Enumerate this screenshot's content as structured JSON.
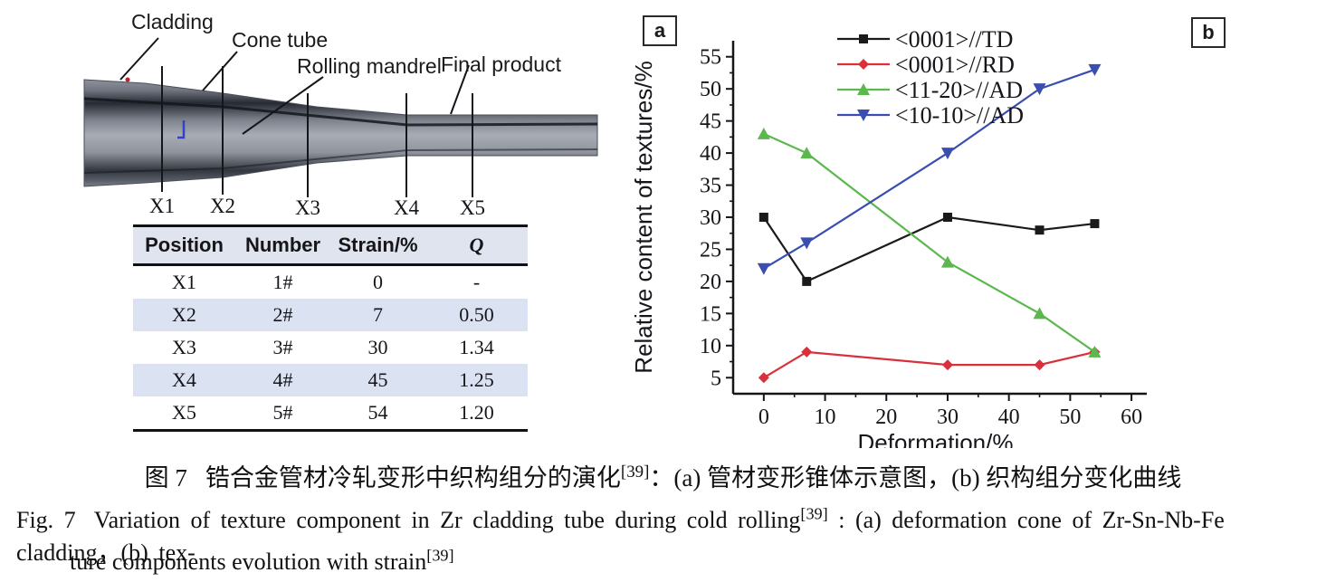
{
  "panel_a": {
    "badge": "a",
    "labels": {
      "cladding": "Cladding",
      "cone_tube": "Cone tube",
      "rolling_mandrel": "Rolling mandrel",
      "final_product": "Final product"
    },
    "positions": [
      "X1",
      "X2",
      "X3",
      "X4",
      "X5"
    ]
  },
  "table": {
    "headers": [
      "Position",
      "Number",
      "Strain/%",
      "Q"
    ],
    "rows": [
      {
        "position": "X1",
        "number": "1#",
        "strain": "0",
        "q": "-"
      },
      {
        "position": "X2",
        "number": "2#",
        "strain": "7",
        "q": "0.50"
      },
      {
        "position": "X3",
        "number": "3#",
        "strain": "30",
        "q": "1.34"
      },
      {
        "position": "X4",
        "number": "4#",
        "strain": "45",
        "q": "1.25"
      },
      {
        "position": "X5",
        "number": "5#",
        "strain": "54",
        "q": "1.20"
      }
    ]
  },
  "panel_b": {
    "badge": "b"
  },
  "chart_data": {
    "type": "line",
    "x": [
      0,
      7,
      30,
      45,
      54
    ],
    "series": [
      {
        "name": "<0001>//TD",
        "color": "#1a1a1a",
        "marker": "square",
        "values": [
          30,
          20,
          30,
          28,
          29
        ]
      },
      {
        "name": "<0001>//RD",
        "color": "#d9303a",
        "marker": "diamond",
        "values": [
          5,
          9,
          7,
          7,
          9
        ]
      },
      {
        "name": "<11-20>//AD",
        "color": "#5cb84e",
        "marker": "triangle-up",
        "values": [
          43,
          40,
          23,
          15,
          9
        ]
      },
      {
        "name": "<10-10>//AD",
        "color": "#3a4db1",
        "marker": "triangle-down",
        "values": [
          22,
          26,
          40,
          50,
          53
        ]
      }
    ],
    "xlabel": "Deformation/%",
    "ylabel": "Relative content of textures/%",
    "xlim": [
      -5,
      62.5
    ],
    "ylim": [
      2.5,
      57.5
    ],
    "xticks": [
      0,
      10,
      20,
      30,
      40,
      50,
      60
    ],
    "yticks": [
      5,
      10,
      15,
      20,
      25,
      30,
      35,
      40,
      45,
      50,
      55
    ],
    "grid": false,
    "legend_position": "top-center"
  },
  "captions": {
    "chinese": {
      "fig_label": "图 7",
      "before_ref": "锆合金管材冷轧变形中织构组分的演化",
      "ref": "[39]",
      "after_ref": "：(a) 管材变形锥体示意图，(b) 织构组分变化曲线"
    },
    "english_line1": {
      "fig_label": "Fig. 7",
      "before_ref": "Variation of texture component in Zr cladding tube during cold rolling",
      "ref": "[39]",
      "after_ref": " : (a) deformation cone of Zr-Sn-Nb-Fe cladding，(b) tex-"
    },
    "english_line2": {
      "before_ref": "ture components evolution with strain",
      "ref": "[39]"
    }
  }
}
